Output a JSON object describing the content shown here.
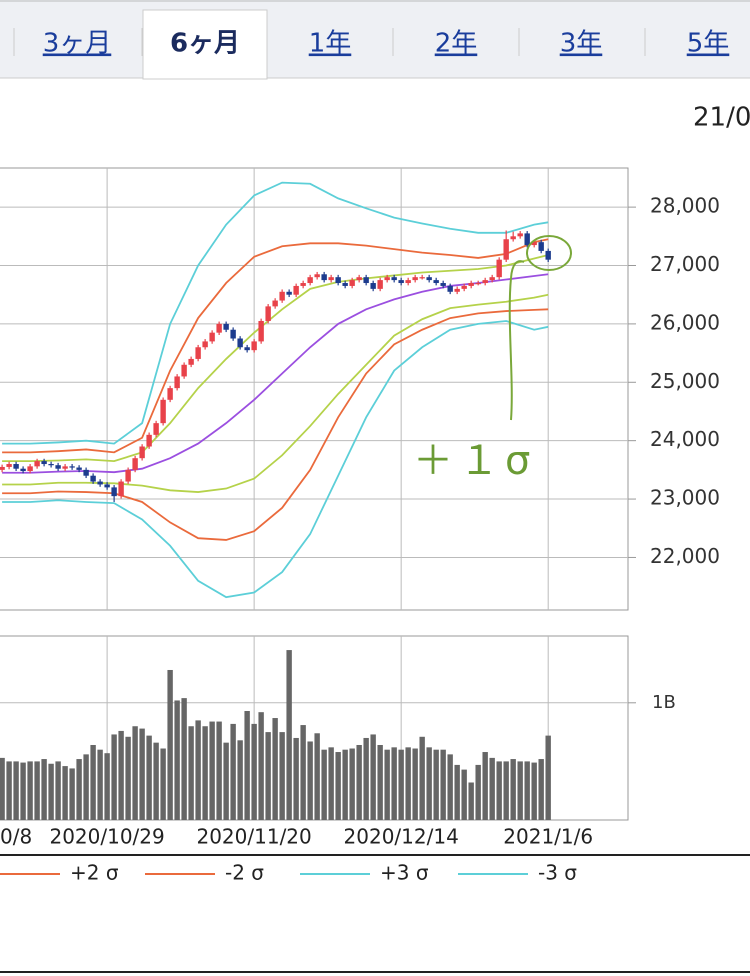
{
  "tabs": {
    "labels": [
      "3ヶ月",
      "6ヶ月",
      "1年",
      "2年",
      "3年",
      "5年"
    ],
    "active": 1
  },
  "date_header": "21/0",
  "annotation": "＋１σ",
  "chart_data": [
    {
      "type": "candlestick",
      "up_color": "#e8424a",
      "down_color": "#1d3c8e",
      "grid": true,
      "ylim": [
        21100,
        28670
      ],
      "yticks": [
        {
          "value": 22000,
          "label": "22,000"
        },
        {
          "value": 23000,
          "label": "23,000"
        },
        {
          "value": 24000,
          "label": "24,000"
        },
        {
          "value": 25000,
          "label": "25,000"
        },
        {
          "value": 26000,
          "label": "26,000"
        },
        {
          "value": 27000,
          "label": "27,000"
        },
        {
          "value": 28000,
          "label": "28,000"
        }
      ],
      "candles": [
        [
          23500,
          23590,
          23460,
          23550
        ],
        [
          23550,
          23640,
          23510,
          23600
        ],
        [
          23600,
          23640,
          23480,
          23520
        ],
        [
          23520,
          23560,
          23440,
          23480
        ],
        [
          23480,
          23600,
          23440,
          23560
        ],
        [
          23560,
          23690,
          23520,
          23650
        ],
        [
          23650,
          23690,
          23560,
          23600
        ],
        [
          23600,
          23640,
          23540,
          23580
        ],
        [
          23580,
          23620,
          23480,
          23520
        ],
        [
          23520,
          23600,
          23480,
          23560
        ],
        [
          23560,
          23600,
          23500,
          23540
        ],
        [
          23540,
          23580,
          23460,
          23500
        ],
        [
          23500,
          23540,
          23360,
          23400
        ],
        [
          23400,
          23440,
          23260,
          23300
        ],
        [
          23300,
          23340,
          23210,
          23250
        ],
        [
          23250,
          23290,
          23160,
          23200
        ],
        [
          23200,
          23240,
          22950,
          23050
        ],
        [
          23050,
          23340,
          23010,
          23300
        ],
        [
          23300,
          23540,
          23260,
          23500
        ],
        [
          23500,
          23740,
          23460,
          23700
        ],
        [
          23700,
          23940,
          23660,
          23900
        ],
        [
          23900,
          24140,
          23860,
          24100
        ],
        [
          24100,
          24340,
          24060,
          24300
        ],
        [
          24300,
          24740,
          24260,
          24700
        ],
        [
          24700,
          24940,
          24660,
          24900
        ],
        [
          24900,
          25140,
          24860,
          25100
        ],
        [
          25100,
          25340,
          25060,
          25300
        ],
        [
          25300,
          25440,
          25260,
          25400
        ],
        [
          25400,
          25640,
          25360,
          25600
        ],
        [
          25600,
          25740,
          25560,
          25700
        ],
        [
          25700,
          25890,
          25660,
          25850
        ],
        [
          25850,
          26040,
          25810,
          26000
        ],
        [
          26000,
          26040,
          25860,
          25900
        ],
        [
          25900,
          25940,
          25710,
          25750
        ],
        [
          25750,
          25790,
          25560,
          25600
        ],
        [
          25600,
          25640,
          25510,
          25550
        ],
        [
          25550,
          25740,
          25510,
          25700
        ],
        [
          25700,
          26090,
          25660,
          26050
        ],
        [
          26050,
          26340,
          26010,
          26300
        ],
        [
          26300,
          26440,
          26260,
          26400
        ],
        [
          26400,
          26590,
          26360,
          26550
        ],
        [
          26550,
          26590,
          26460,
          26500
        ],
        [
          26500,
          26690,
          26460,
          26650
        ],
        [
          26650,
          26740,
          26610,
          26700
        ],
        [
          26700,
          26840,
          26660,
          26800
        ],
        [
          26800,
          26890,
          26760,
          26850
        ],
        [
          26850,
          26890,
          26710,
          26750
        ],
        [
          26750,
          26840,
          26710,
          26800
        ],
        [
          26800,
          26840,
          26660,
          26700
        ],
        [
          26700,
          26740,
          26610,
          26650
        ],
        [
          26650,
          26790,
          26610,
          26750
        ],
        [
          26750,
          26840,
          26710,
          26800
        ],
        [
          26800,
          26840,
          26660,
          26700
        ],
        [
          26700,
          26740,
          26560,
          26600
        ],
        [
          26600,
          26790,
          26560,
          26750
        ],
        [
          26750,
          26840,
          26710,
          26800
        ],
        [
          26800,
          26840,
          26710,
          26750
        ],
        [
          26750,
          26790,
          26660,
          26700
        ],
        [
          26700,
          26790,
          26660,
          26750
        ],
        [
          26750,
          26840,
          26710,
          26800
        ],
        [
          26800,
          26840,
          26760,
          26800
        ],
        [
          26800,
          26840,
          26710,
          26750
        ],
        [
          26750,
          26790,
          26660,
          26700
        ],
        [
          26700,
          26740,
          26610,
          26650
        ],
        [
          26650,
          26690,
          26510,
          26550
        ],
        [
          26550,
          26640,
          26510,
          26600
        ],
        [
          26600,
          26690,
          26560,
          26650
        ],
        [
          26650,
          26740,
          26610,
          26700
        ],
        [
          26700,
          26740,
          26660,
          26700
        ],
        [
          26700,
          26790,
          26660,
          26750
        ],
        [
          26750,
          26840,
          26710,
          26800
        ],
        [
          26800,
          27140,
          26760,
          27100
        ],
        [
          27100,
          27600,
          27060,
          27450
        ],
        [
          27450,
          27580,
          27410,
          27500
        ],
        [
          27500,
          27590,
          27460,
          27550
        ],
        [
          27550,
          27590,
          27310,
          27350
        ],
        [
          27350,
          27440,
          27310,
          27400
        ],
        [
          27400,
          27440,
          27210,
          27250
        ],
        [
          27250,
          27290,
          27060,
          27100
        ]
      ],
      "bands": {
        "x": [
          0,
          4,
          8,
          12,
          16,
          20,
          24,
          28,
          32,
          36,
          40,
          44,
          48,
          52,
          56,
          60,
          64,
          68,
          72,
          76,
          78
        ],
        "series": [
          {
            "color": "#9b4fe0",
            "values": [
              23450,
              23450,
              23470,
              23480,
              23460,
              23520,
              23700,
              23950,
              24300,
              24700,
              25150,
              25600,
              26000,
              26250,
              26420,
              26550,
              26650,
              26700,
              26760,
              26820,
              26850
            ]
          },
          {
            "color": "#b5d24a",
            "values": [
              23650,
              23650,
              23660,
              23680,
              23650,
              23800,
              24300,
              24900,
              25400,
              25850,
              26250,
              26600,
              26720,
              26780,
              26830,
              26880,
              26910,
              26940,
              27000,
              27120,
              27180
            ]
          },
          {
            "color": "#b5d24a",
            "values": [
              23250,
              23250,
              23280,
              23280,
              23270,
              23230,
              23150,
              23120,
              23180,
              23350,
              23750,
              24250,
              24800,
              25300,
              25800,
              26080,
              26270,
              26330,
              26380,
              26450,
              26500
            ]
          },
          {
            "name": "+2 σ",
            "color": "#ea6a3c",
            "values": [
              23800,
              23800,
              23820,
              23850,
              23800,
              24050,
              25200,
              26100,
              26700,
              27150,
              27330,
              27380,
              27380,
              27340,
              27280,
              27220,
              27180,
              27130,
              27200,
              27400,
              27450
            ]
          },
          {
            "name": "-2 σ",
            "color": "#ea6a3c",
            "values": [
              23100,
              23100,
              23130,
              23120,
              23100,
              22950,
              22600,
              22330,
              22300,
              22450,
              22850,
              23500,
              24400,
              25150,
              25650,
              25900,
              26100,
              26180,
              26220,
              26240,
              26250
            ]
          },
          {
            "name": "+3 σ",
            "color": "#5ccfd8",
            "values": [
              23950,
              23950,
              23970,
              24000,
              23950,
              24300,
              26000,
              27000,
              27700,
              28200,
              28420,
              28400,
              28150,
              27980,
              27820,
              27720,
              27630,
              27560,
              27560,
              27700,
              27740
            ]
          },
          {
            "name": "-3 σ",
            "color": "#5ccfd8",
            "values": [
              22950,
              22950,
              22980,
              22950,
              22930,
              22650,
              22200,
              21600,
              21320,
              21400,
              21750,
              22400,
              23400,
              24400,
              25200,
              25600,
              25900,
              26000,
              26050,
              25900,
              25950
            ]
          }
        ]
      }
    },
    {
      "type": "bar",
      "color": "#666666",
      "grid": true,
      "xlim": [
        -0.3,
        89.4
      ],
      "xticks": [
        {
          "value": -6,
          "label": "0/8"
        },
        {
          "value": 15,
          "label": "2020/10/29"
        },
        {
          "value": 36,
          "label": "2020/11/20"
        },
        {
          "value": 57,
          "label": "2020/12/14"
        },
        {
          "value": 78,
          "label": "2021/1/6"
        }
      ],
      "ylim": [
        0,
        1.57
      ],
      "yticks": [
        {
          "value": 1,
          "label": "1B"
        }
      ],
      "values": [
        0.53,
        0.5,
        0.5,
        0.49,
        0.5,
        0.5,
        0.52,
        0.48,
        0.5,
        0.46,
        0.44,
        0.52,
        0.56,
        0.64,
        0.6,
        0.57,
        0.73,
        0.76,
        0.71,
        0.8,
        0.78,
        0.72,
        0.66,
        0.61,
        1.28,
        1.02,
        1.04,
        0.8,
        0.85,
        0.8,
        0.84,
        0.84,
        0.66,
        0.82,
        0.68,
        0.93,
        0.82,
        0.92,
        0.75,
        0.87,
        0.75,
        1.45,
        0.7,
        0.81,
        0.67,
        0.74,
        0.6,
        0.62,
        0.58,
        0.6,
        0.61,
        0.64,
        0.7,
        0.73,
        0.64,
        0.6,
        0.62,
        0.6,
        0.62,
        0.61,
        0.71,
        0.62,
        0.6,
        0.6,
        0.56,
        0.47,
        0.43,
        0.32,
        0.47,
        0.58,
        0.53,
        0.5,
        0.5,
        0.52,
        0.5,
        0.5,
        0.49,
        0.52,
        0.72
      ]
    }
  ]
}
